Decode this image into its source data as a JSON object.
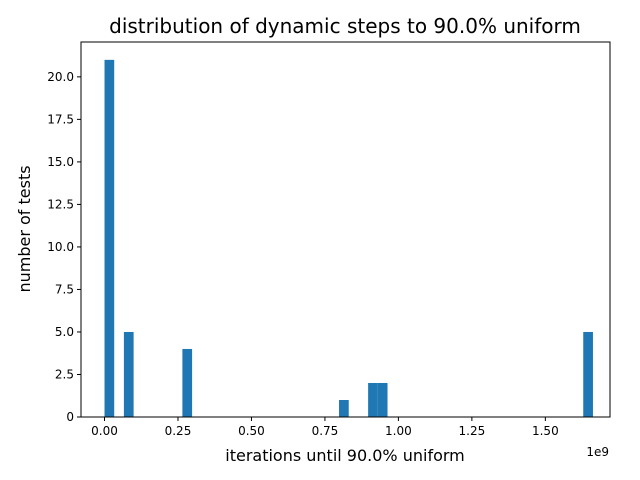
{
  "chart_data": {
    "type": "bar",
    "title": "distribution of dynamic steps to 90.0% uniform",
    "xlabel": "iterations until 90.0% uniform",
    "ylabel": "number of tests",
    "x_offset_label": "1e9",
    "x_scale": 1000000000,
    "xlim": [
      -0.08,
      1.72
    ],
    "ylim": [
      0,
      22.05
    ],
    "x_ticks": [
      0.0,
      0.25,
      0.5,
      0.75,
      1.0,
      1.25,
      1.5
    ],
    "x_tick_labels": [
      "0.00",
      "0.25",
      "0.50",
      "0.75",
      "1.00",
      "1.25",
      "1.50"
    ],
    "y_ticks": [
      0,
      2.5,
      5,
      7.5,
      10,
      12.5,
      15,
      17.5,
      20
    ],
    "y_tick_labels": [
      "0",
      "2.5",
      "5.0",
      "7.5",
      "10.0",
      "12.5",
      "15.0",
      "17.5",
      "20.0"
    ],
    "bar_color": "#1f77b4",
    "bars": [
      {
        "x0": 0.0,
        "x1": 0.033,
        "count": 21
      },
      {
        "x0": 0.066,
        "x1": 0.099,
        "count": 5
      },
      {
        "x0": 0.265,
        "x1": 0.298,
        "count": 4
      },
      {
        "x0": 0.798,
        "x1": 0.831,
        "count": 1
      },
      {
        "x0": 0.897,
        "x1": 0.93,
        "count": 2
      },
      {
        "x0": 0.93,
        "x1": 0.963,
        "count": 2
      },
      {
        "x0": 1.629,
        "x1": 1.662,
        "count": 5
      }
    ],
    "grid": false,
    "legend": "none"
  }
}
